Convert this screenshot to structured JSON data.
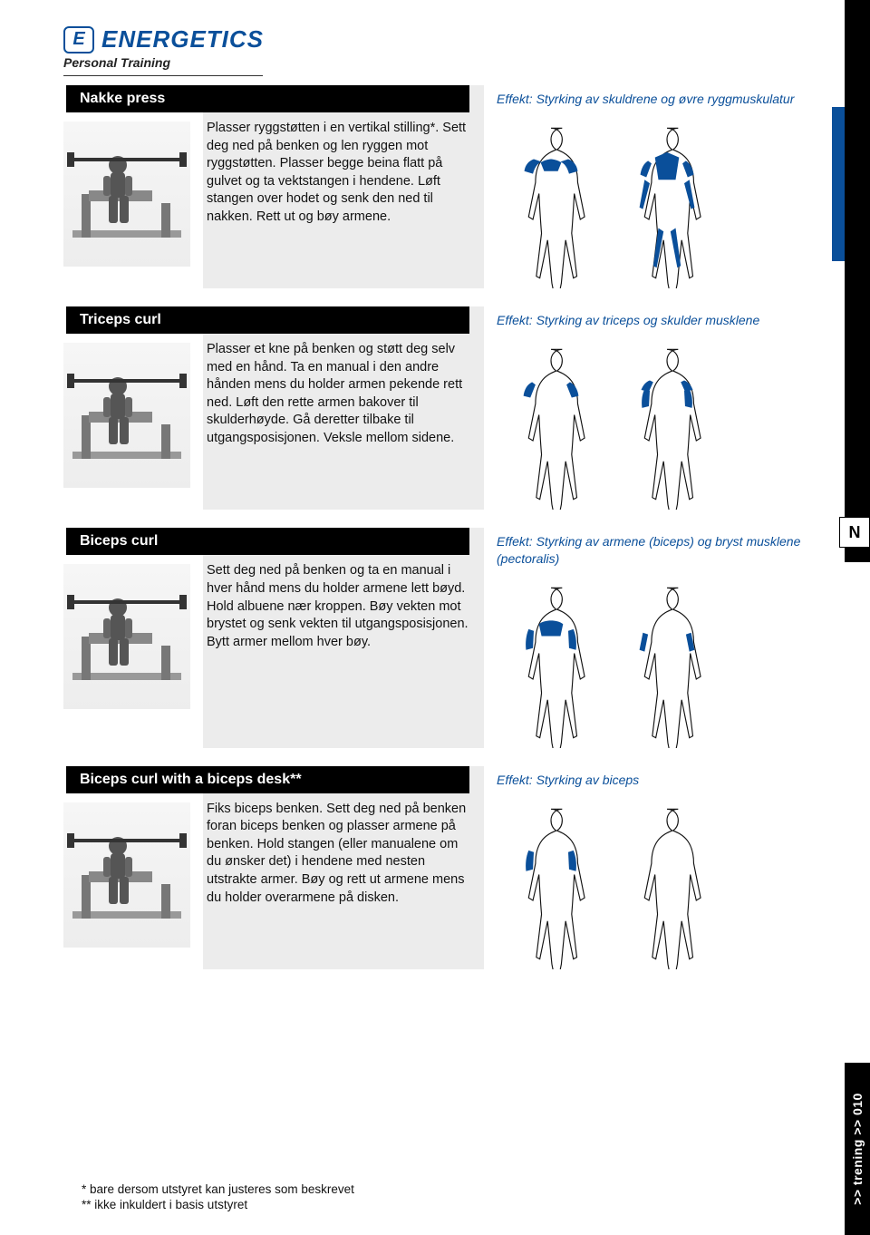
{
  "brand": {
    "mark_letter": "E",
    "name": "ENERGETICS",
    "subtitle": "Personal Training",
    "color": "#0a4f9a"
  },
  "side": {
    "letter": "N",
    "footer_text": ">> trening >> 010"
  },
  "exercises": [
    {
      "title": "Nakke press",
      "description": "Plasser ryggstøtten i en vertikal stilling*. Sett deg ned på benken og len ryggen mot ryggstøtten. Plasser begge beina flatt på gulvet og ta vektstangen i hendene. Løft stangen over hodet og senk den ned til nakken. Rett ut og bøy armene.",
      "effect": "Effekt: Styrking av skuldrene og øvre ryggmuskulatur",
      "highlight": "shoulders_upperback"
    },
    {
      "title": "Triceps curl",
      "description": "Plasser et kne på benken og støtt deg selv med en hånd. Ta en manual i den andre hånden mens du holder armen pekende rett ned. Løft den rette armen bakover til skulderhøyde. Gå deretter tilbake til utgangsposisjonen. Veksle mellom sidene.",
      "effect": "Effekt: Styrking av triceps og skulder musklene",
      "highlight": "triceps_shoulders"
    },
    {
      "title": "Biceps curl",
      "description": "Sett deg ned på benken og ta en manual i hver hånd mens du holder armene lett bøyd. Hold albuene nær kroppen. Bøy vekten mot brystet og senk vekten til utgangsposisjonen. Bytt armer mellom hver bøy.",
      "effect": "Effekt: Styrking av armene (biceps) og bryst musklene (pectoralis)",
      "highlight": "biceps_chest"
    },
    {
      "title": "Biceps curl with a biceps desk**",
      "description": "Fiks biceps benken. Sett deg ned på benken foran biceps benken og plasser armene på benken. Hold stangen (eller manualene om du ønsker det) i hendene med nesten utstrakte armer. Bøy og rett ut armene mens du holder overarmene på disken.",
      "effect": "Effekt: Styrking av biceps",
      "highlight": "biceps"
    }
  ],
  "footnotes": {
    "f1": "*   bare dersom utstyret kan justeres som beskrevet",
    "f2": "** ikke inkuldert i basis utstyret"
  },
  "colors": {
    "accent": "#0a4f9a",
    "panel": "#ececec",
    "thumb_bg_top": "#f6f6f6",
    "thumb_bg_bottom": "#ededed",
    "title_bg": "#000000",
    "text": "#111111"
  }
}
